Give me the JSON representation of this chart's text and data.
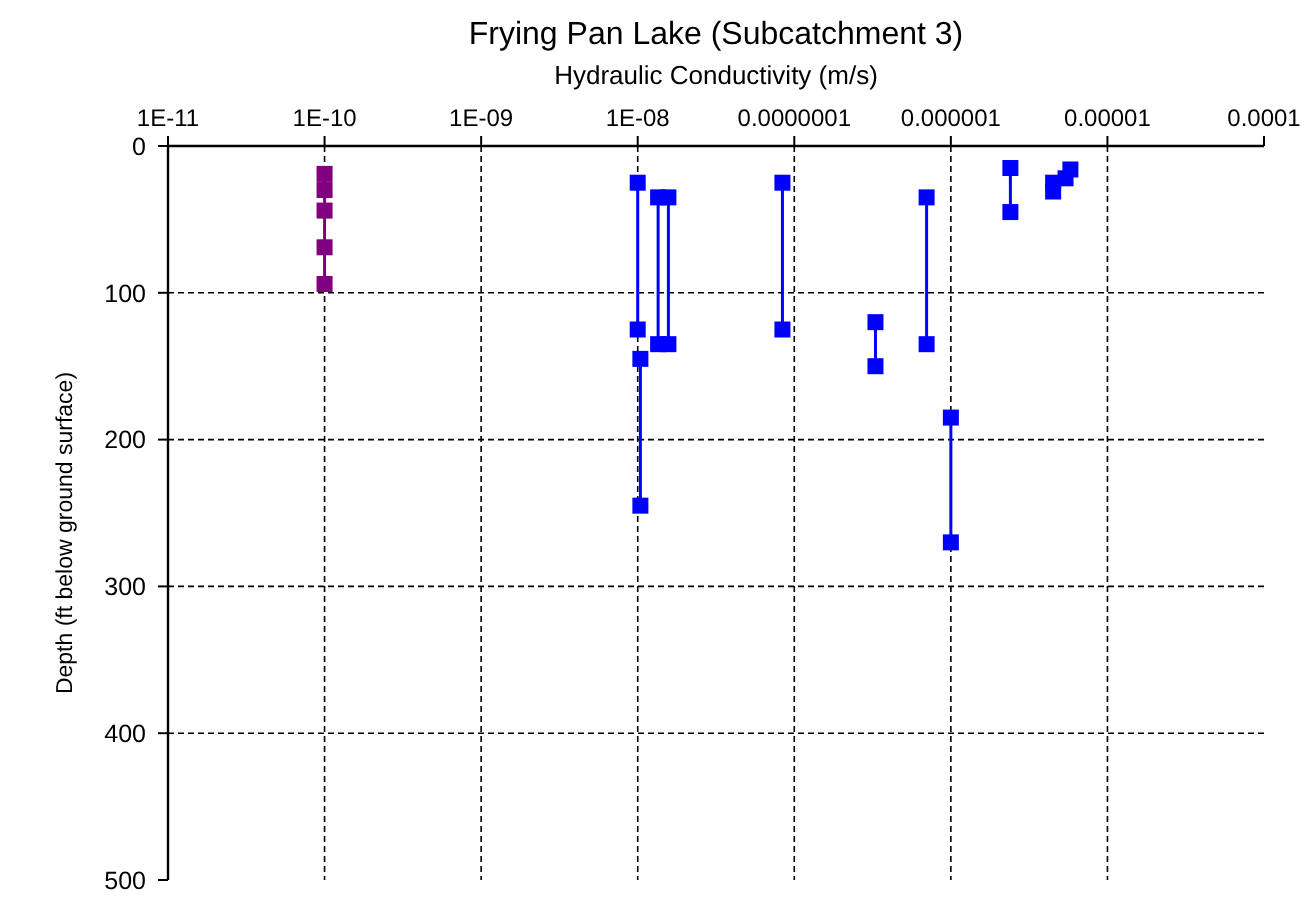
{
  "chart_data": {
    "type": "line",
    "title": "Frying Pan Lake (Subcatchment 3)",
    "xlabel": "Hydraulic Conductivity (m/s)",
    "ylabel": "Depth (ft below ground surface)",
    "log": "x",
    "xlim": [
      1e-11,
      0.0001
    ],
    "xticks": [
      {
        "value": 1e-11,
        "label": "1E-11"
      },
      {
        "value": 1e-10,
        "label": "1E-10"
      },
      {
        "value": 1e-09,
        "label": "1E-09"
      },
      {
        "value": 1e-08,
        "label": "1E-08"
      },
      {
        "value": 1e-07,
        "label": "0.0000001"
      },
      {
        "value": 1e-06,
        "label": "0.000001"
      },
      {
        "value": 1e-05,
        "label": "0.00001"
      },
      {
        "value": 0.0001,
        "label": "0.0001"
      }
    ],
    "ylim": [
      500,
      0
    ],
    "yticks": [
      0,
      100,
      200,
      300,
      400,
      500
    ],
    "grid": true,
    "marker": "square",
    "line_style": "solid",
    "series": [
      {
        "color": "#800080",
        "x": [
          1e-10,
          1e-10,
          1e-10,
          1e-10,
          1e-10
        ],
        "values": [
          19,
          30,
          44,
          69,
          94
        ]
      },
      {
        "color": "#0000ff",
        "x": [
          1e-08,
          1e-08
        ],
        "values": [
          25,
          125
        ]
      },
      {
        "color": "#0000ff",
        "x": [
          1.04e-08,
          1.04e-08
        ],
        "values": [
          145,
          245
        ]
      },
      {
        "color": "#0000ff",
        "x": [
          1.35e-08,
          1.35e-08
        ],
        "values": [
          35,
          135
        ]
      },
      {
        "color": "#0000ff",
        "x": [
          1.57e-08,
          1.57e-08
        ],
        "values": [
          35,
          135
        ]
      },
      {
        "color": "#0000ff",
        "x": [
          8.4e-08,
          8.4e-08
        ],
        "values": [
          25,
          125
        ]
      },
      {
        "color": "#0000ff",
        "x": [
          3.3e-07,
          3.3e-07
        ],
        "values": [
          120,
          150
        ]
      },
      {
        "color": "#0000ff",
        "x": [
          7e-07,
          7e-07
        ],
        "values": [
          35,
          135
        ]
      },
      {
        "color": "#0000ff",
        "x": [
          1e-06,
          1e-06
        ],
        "values": [
          185,
          270
        ]
      },
      {
        "color": "#0000ff",
        "x": [
          2.4e-06,
          2.4e-06
        ],
        "values": [
          15,
          45
        ]
      },
      {
        "type": "scatter",
        "color": "#0000ff",
        "x": [
          4.5e-06,
          4.5e-06
        ],
        "values": [
          25,
          31
        ]
      },
      {
        "type": "scatter",
        "color": "#0000ff",
        "x": [
          5.8e-06,
          5.4e-06
        ],
        "values": [
          16,
          22
        ]
      }
    ]
  }
}
